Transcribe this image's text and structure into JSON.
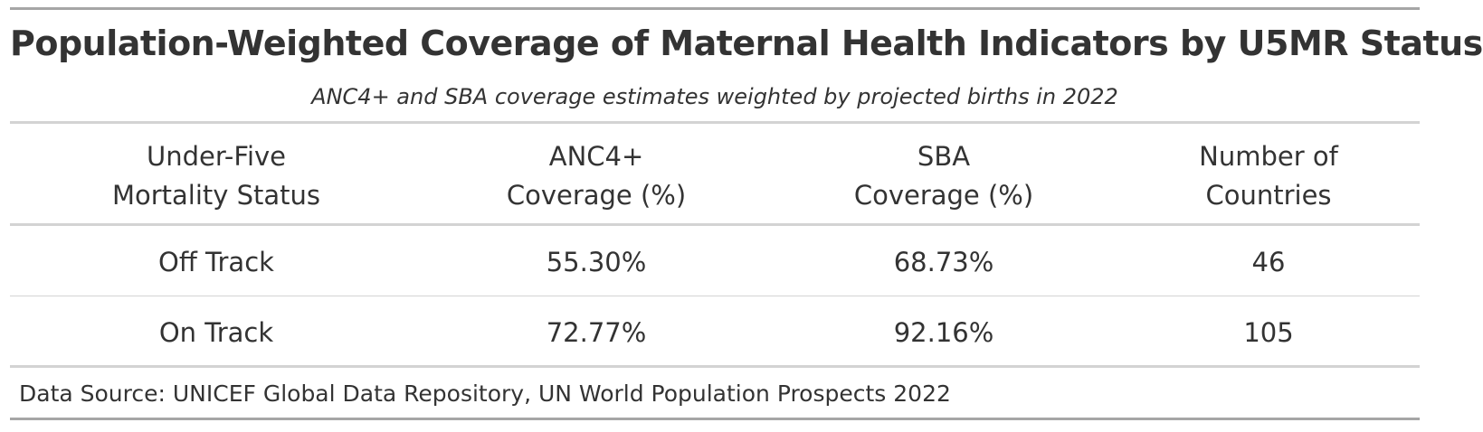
{
  "table": {
    "title": "Population-Weighted Coverage of Maternal Health Indicators by U5MR Status",
    "subtitle": "ANC4+ and SBA coverage estimates weighted by projected births in 2022",
    "columns": [
      {
        "line1": "Under-Five",
        "line2": "Mortality Status"
      },
      {
        "line1": "ANC4+",
        "line2": "Coverage (%)"
      },
      {
        "line1": "SBA",
        "line2": "Coverage (%)"
      },
      {
        "line1": "Number of",
        "line2": "Countries"
      }
    ],
    "rows": [
      {
        "status": "Off Track",
        "anc4": "55.30%",
        "sba": "68.73%",
        "countries": "46"
      },
      {
        "status": "On Track",
        "anc4": "72.77%",
        "sba": "92.16%",
        "countries": "105"
      }
    ],
    "source_note": "Data Source: UNICEF Global Data Repository, UN World Population Prospects 2022"
  }
}
